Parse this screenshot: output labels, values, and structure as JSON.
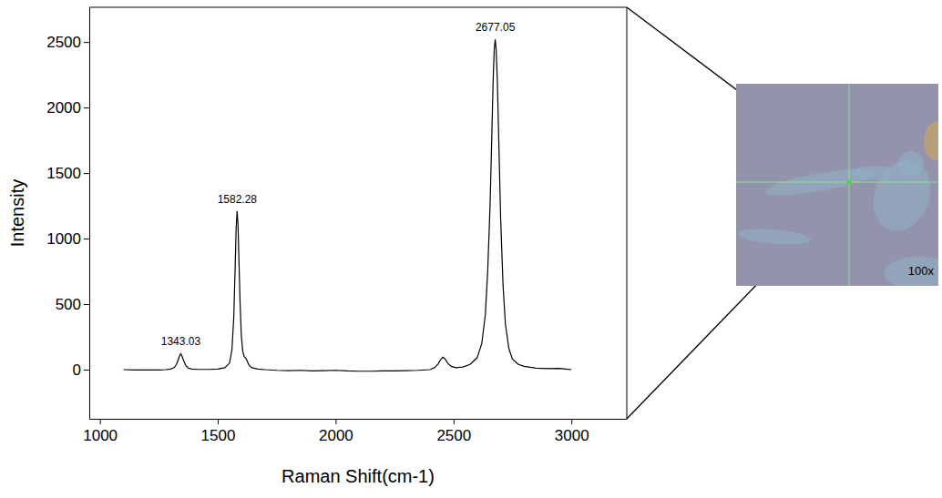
{
  "chart_data": {
    "type": "line",
    "x_label": "Raman Shift(cm-1)",
    "y_label": "Intensity",
    "color": "#000000",
    "xlim": [
      955,
      3235
    ],
    "ylim": [
      -375,
      2765
    ],
    "xticks": [
      1000,
      1500,
      2000,
      2500,
      3000
    ],
    "yticks": [
      0,
      500,
      1000,
      1500,
      2000,
      2500
    ],
    "grid": false,
    "x": [
      1100,
      1150,
      1200,
      1250,
      1280,
      1300,
      1315,
      1325,
      1333,
      1340,
      1343,
      1347,
      1355,
      1365,
      1375,
      1390,
      1420,
      1460,
      1500,
      1530,
      1550,
      1560,
      1568,
      1574,
      1578,
      1582,
      1586,
      1590,
      1595,
      1600,
      1606,
      1612,
      1618,
      1624,
      1632,
      1645,
      1670,
      1700,
      1750,
      1800,
      1850,
      1900,
      1950,
      2000,
      2050,
      2100,
      2150,
      2200,
      2250,
      2300,
      2350,
      2400,
      2420,
      2435,
      2445,
      2455,
      2465,
      2475,
      2490,
      2510,
      2540,
      2570,
      2600,
      2620,
      2635,
      2645,
      2655,
      2662,
      2668,
      2673,
      2677,
      2681,
      2686,
      2692,
      2700,
      2710,
      2720,
      2735,
      2750,
      2775,
      2800,
      2850,
      2900,
      2950,
      2975,
      3000
    ],
    "values": [
      0,
      -2,
      -3,
      -2,
      0,
      5,
      15,
      40,
      80,
      115,
      122,
      110,
      70,
      30,
      12,
      5,
      2,
      2,
      5,
      15,
      50,
      150,
      400,
      800,
      1080,
      1210,
      1100,
      820,
      500,
      260,
      140,
      100,
      90,
      70,
      35,
      15,
      5,
      0,
      -5,
      -8,
      -5,
      -10,
      -8,
      -5,
      -10,
      -12,
      -12,
      -10,
      -10,
      -8,
      -5,
      0,
      15,
      45,
      75,
      95,
      80,
      50,
      25,
      15,
      20,
      40,
      90,
      200,
      420,
      750,
      1250,
      1750,
      2200,
      2450,
      2520,
      2440,
      2200,
      1750,
      1150,
      650,
      350,
      160,
      80,
      40,
      25,
      12,
      8,
      10,
      5,
      0
    ],
    "annotations": [
      {
        "label": "1343.03",
        "x": 1343.03,
        "y": 122
      },
      {
        "label": "1582.28",
        "x": 1582.28,
        "y": 1210
      },
      {
        "label": "2677.05",
        "x": 2677.05,
        "y": 2520
      }
    ],
    "inset": {
      "label": "100x"
    }
  }
}
